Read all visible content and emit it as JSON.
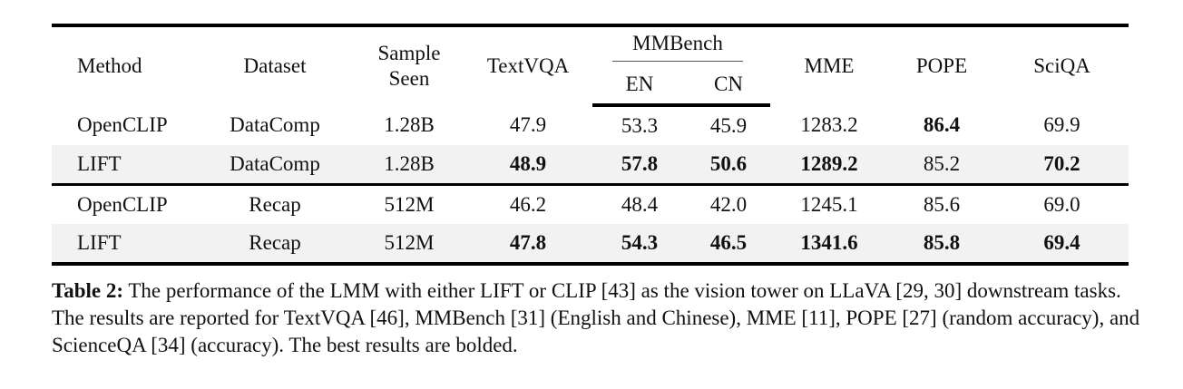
{
  "table": {
    "headers": {
      "method": "Method",
      "dataset": "Dataset",
      "sample_seen_line1": "Sample",
      "sample_seen_line2": "Seen",
      "textvqa": "TextVQA",
      "mmbench": "MMBench",
      "mmbench_en": "EN",
      "mmbench_cn": "CN",
      "mme": "MME",
      "pope": "POPE",
      "sciqa": "SciQA"
    },
    "rows": [
      {
        "method": "OpenCLIP",
        "dataset": "DataComp",
        "sample_seen": "1.28B",
        "textvqa": "47.9",
        "en": "53.3",
        "cn": "45.9",
        "mme": "1283.2",
        "pope": "86.4",
        "sciqa": "69.9"
      },
      {
        "method": "LIFT",
        "dataset": "DataComp",
        "sample_seen": "1.28B",
        "textvqa": "48.9",
        "en": "57.8",
        "cn": "50.6",
        "mme": "1289.2",
        "pope": "85.2",
        "sciqa": "70.2"
      },
      {
        "method": "OpenCLIP",
        "dataset": "Recap",
        "sample_seen": "512M",
        "textvqa": "46.2",
        "en": "48.4",
        "cn": "42.0",
        "mme": "1245.1",
        "pope": "85.6",
        "sciqa": "69.0"
      },
      {
        "method": "LIFT",
        "dataset": "Recap",
        "sample_seen": "512M",
        "textvqa": "47.8",
        "en": "54.3",
        "cn": "46.5",
        "mme": "1341.6",
        "pope": "85.8",
        "sciqa": "69.4"
      }
    ],
    "bolded_cells": {
      "0": [
        "pope"
      ],
      "1": [
        "textvqa",
        "en",
        "cn",
        "mme",
        "sciqa"
      ],
      "2": [],
      "3": [
        "textvqa",
        "en",
        "cn",
        "mme",
        "pope",
        "sciqa"
      ]
    }
  },
  "caption": {
    "label": "Table 2:",
    "text": "The performance of the LMM with either LIFT or CLIP [43] as the vision tower on LLaVA [29, 30] downstream tasks. The results are reported for TextVQA [46], MMBench [31] (English and Chinese), MME [11], POPE [27] (random accuracy), and ScienceQA [34] (accuracy). The best results are bolded."
  }
}
